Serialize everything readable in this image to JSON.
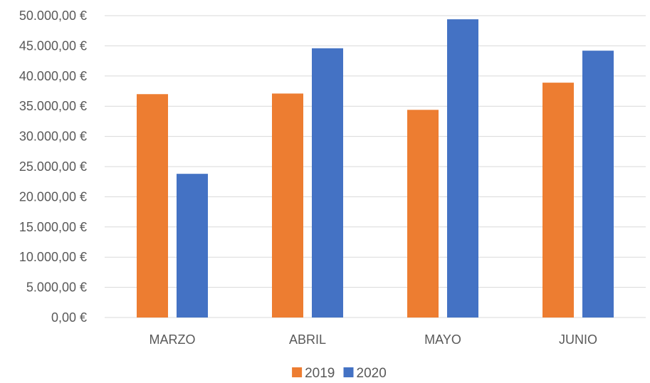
{
  "chart_data": {
    "type": "bar",
    "categories": [
      "MARZO",
      "ABRIL",
      "MAYO",
      "JUNIO"
    ],
    "series": [
      {
        "name": "2019",
        "color": "#ED7D31",
        "values": [
          37000,
          37100,
          34400,
          38900
        ]
      },
      {
        "name": "2020",
        "color": "#4472C4",
        "values": [
          23800,
          44600,
          49400,
          44200
        ]
      }
    ],
    "y_ticks": [
      0,
      5000,
      10000,
      15000,
      20000,
      25000,
      30000,
      35000,
      40000,
      45000,
      50000
    ],
    "y_tick_labels": [
      "0,00 €",
      "5.000,00 €",
      "10.000,00 €",
      "15.000,00 €",
      "20.000,00 €",
      "25.000,00 €",
      "30.000,00 €",
      "35.000,00 €",
      "40.000,00 €",
      "45.000,00 €",
      "50.000,00 €"
    ],
    "ylim": [
      0,
      50000
    ],
    "grid": true,
    "legend_position": "bottom",
    "title": "",
    "xlabel": "",
    "ylabel": ""
  }
}
